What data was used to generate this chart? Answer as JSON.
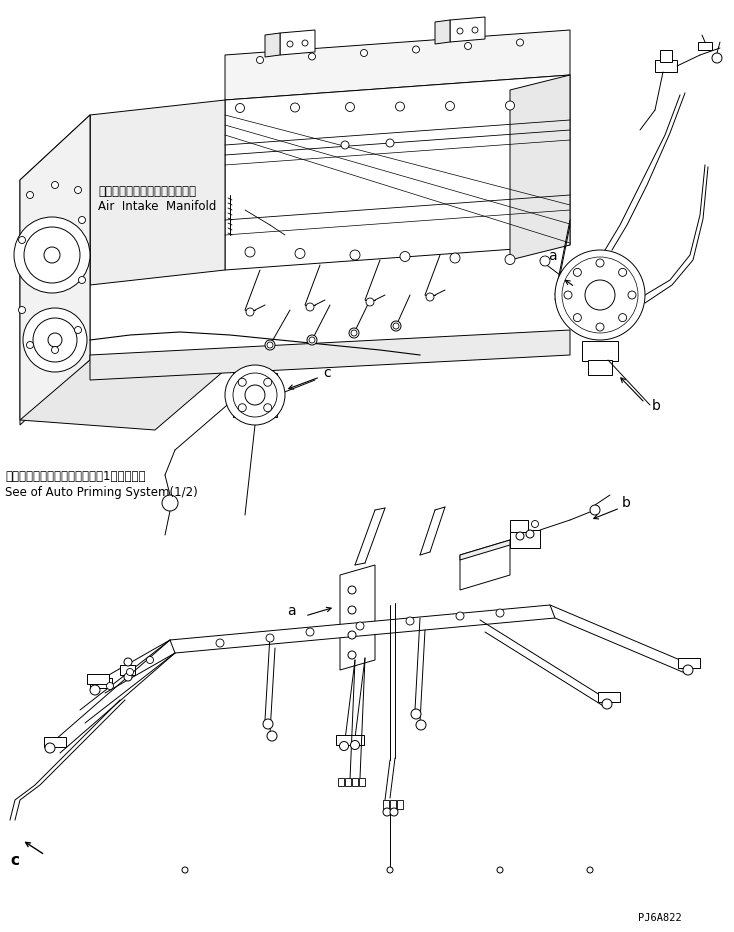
{
  "background_color": "#ffffff",
  "figure_width": 7.34,
  "figure_height": 9.32,
  "dpi": 100,
  "part_code": "PJ6A822",
  "label_a1": "a",
  "label_b1": "b",
  "label_c1": "c",
  "label_a2": "a",
  "label_b2": "b",
  "label_c2": "c",
  "japanese_label1": "エアーインテークマニホールド",
  "english_label1": "Air  Intake  Manifold",
  "japanese_label2": "オートプライミングシステム（1／２）参照",
  "english_label2": "See of Auto Priming System(1/2)",
  "line_color": "#000000",
  "text_color": "#000000"
}
